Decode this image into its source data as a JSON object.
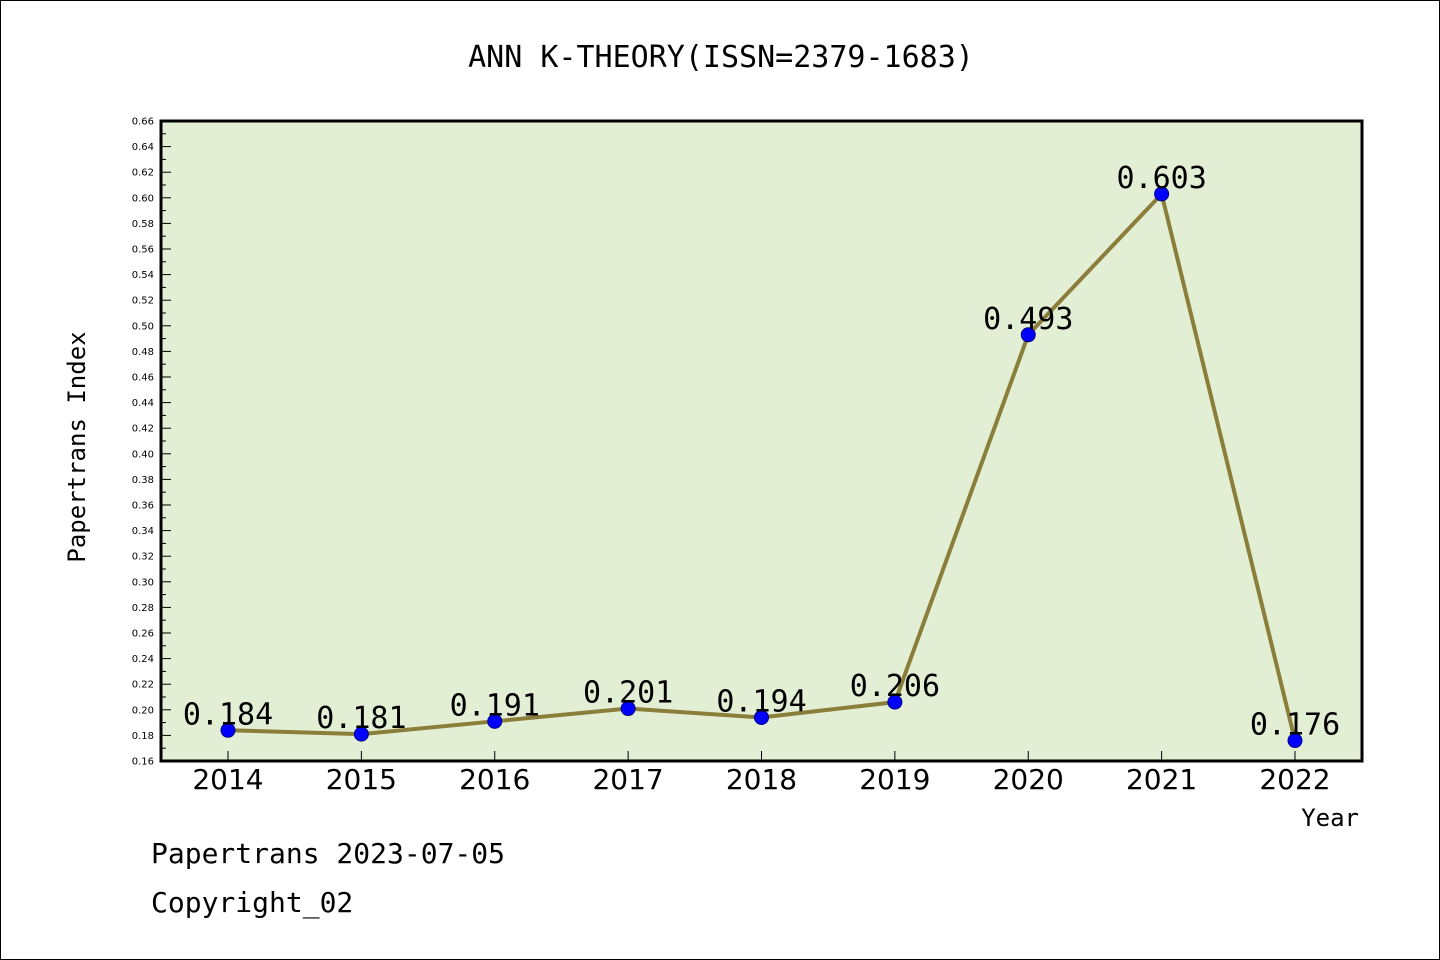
{
  "chart_data": {
    "type": "line",
    "title": "ANN K-THEORY(ISSN=2379-1683)",
    "xlabel": "Year",
    "ylabel": "Papertrans Index",
    "categories": [
      "2014",
      "2015",
      "2016",
      "2017",
      "2018",
      "2019",
      "2020",
      "2021",
      "2022"
    ],
    "series": [
      {
        "values": [
          0.184,
          0.181,
          0.191,
          0.201,
          0.194,
          0.206,
          0.493,
          0.603,
          0.176
        ],
        "labels": [
          "0.184",
          "0.181",
          "0.191",
          "0.201",
          "0.194",
          "0.206",
          "0.493",
          "0.603",
          "0.176"
        ]
      }
    ],
    "ylim": [
      0.16,
      0.66
    ],
    "ytick_step": 0.02,
    "ytick_labels": [
      "0.16",
      "0.18",
      "0.20",
      "0.22",
      "0.24",
      "0.26",
      "0.28",
      "0.30",
      "0.32",
      "0.34",
      "0.36",
      "0.38",
      "0.40",
      "0.42",
      "0.44",
      "0.46",
      "0.48",
      "0.50",
      "0.52",
      "0.54",
      "0.56",
      "0.58",
      "0.60",
      "0.62",
      "0.64",
      "0.66"
    ],
    "grid": false,
    "colors": {
      "plot_background": "#e2efd5",
      "line": "#8b7d3a",
      "marker_fill": "#0000ff",
      "marker_stroke": "#000080",
      "axis": "#000000"
    }
  },
  "footer": {
    "date_line": "Papertrans 2023-07-05",
    "copyright_line": "Copyright_02"
  }
}
